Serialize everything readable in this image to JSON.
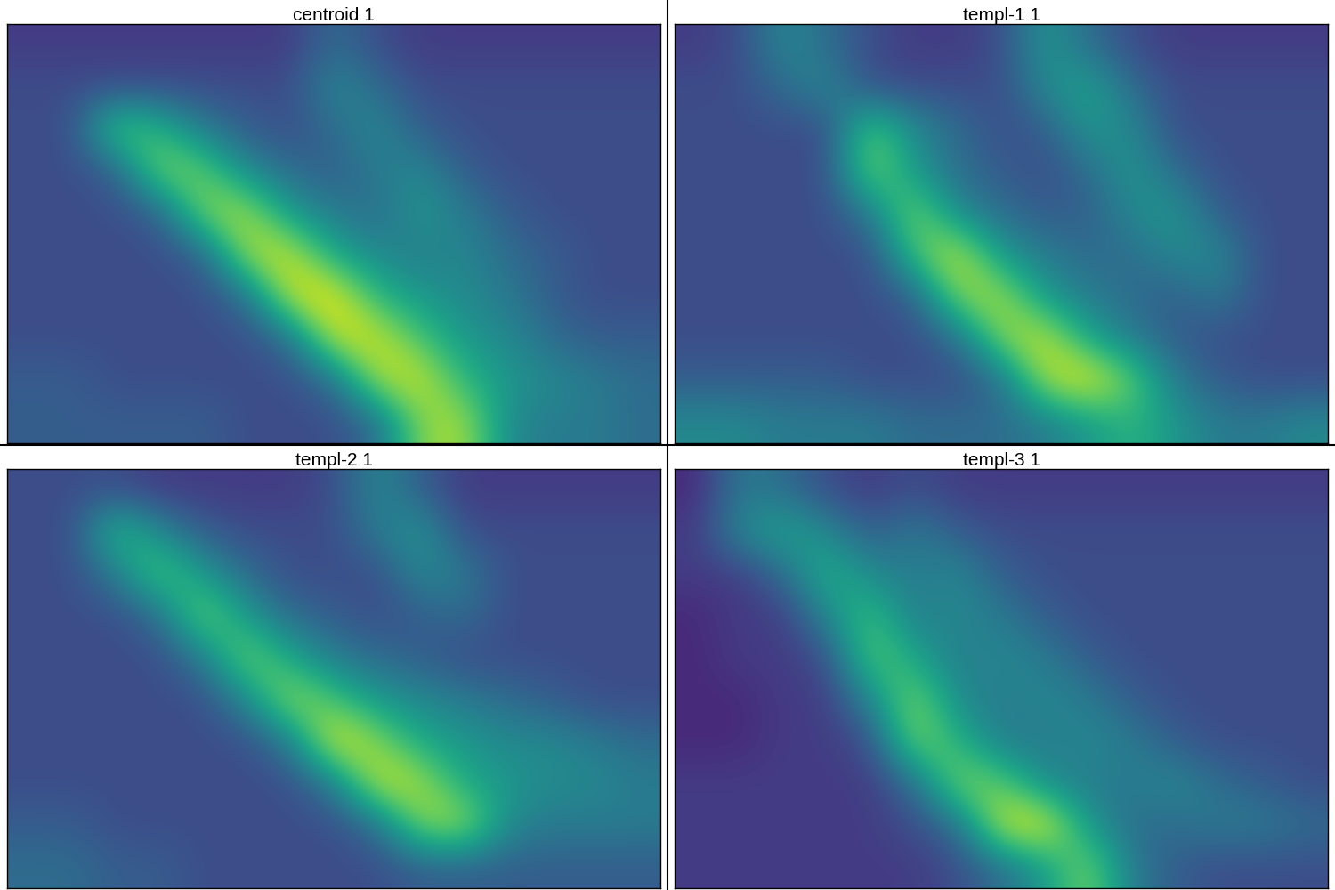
{
  "chart_data": [
    {
      "type": "heatmap",
      "title": "centroid 1",
      "tick_labels": false,
      "zlim": [
        0.15,
        1.0
      ],
      "cells": [
        [
          0.3,
          0.3,
          0.3,
          0.3,
          0.3,
          0.3,
          0.3,
          0.45,
          0.35,
          0.3,
          0.3,
          0.3,
          0.3,
          0.3,
          0.3
        ],
        [
          0.35,
          0.35,
          0.35,
          0.35,
          0.35,
          0.35,
          0.35,
          0.55,
          0.45,
          0.35,
          0.35,
          0.35,
          0.35,
          0.35,
          0.35
        ],
        [
          0.35,
          0.35,
          0.8,
          0.7,
          0.5,
          0.4,
          0.35,
          0.45,
          0.55,
          0.4,
          0.35,
          0.35,
          0.35,
          0.35,
          0.35
        ],
        [
          0.35,
          0.35,
          0.4,
          0.85,
          0.8,
          0.55,
          0.45,
          0.4,
          0.5,
          0.55,
          0.4,
          0.35,
          0.35,
          0.35,
          0.35
        ],
        [
          0.35,
          0.35,
          0.35,
          0.4,
          0.85,
          0.9,
          0.6,
          0.5,
          0.45,
          0.6,
          0.5,
          0.4,
          0.35,
          0.35,
          0.35
        ],
        [
          0.35,
          0.35,
          0.35,
          0.35,
          0.4,
          0.9,
          0.95,
          0.65,
          0.55,
          0.5,
          0.55,
          0.45,
          0.4,
          0.35,
          0.35
        ],
        [
          0.35,
          0.35,
          0.35,
          0.35,
          0.35,
          0.45,
          0.95,
          1.0,
          0.7,
          0.6,
          0.55,
          0.5,
          0.4,
          0.35,
          0.35
        ],
        [
          0.35,
          0.35,
          0.35,
          0.35,
          0.35,
          0.35,
          0.45,
          0.95,
          0.95,
          0.75,
          0.6,
          0.55,
          0.45,
          0.4,
          0.4
        ],
        [
          0.4,
          0.4,
          0.35,
          0.35,
          0.35,
          0.35,
          0.35,
          0.45,
          0.9,
          0.95,
          0.7,
          0.6,
          0.55,
          0.5,
          0.45
        ],
        [
          0.4,
          0.4,
          0.4,
          0.4,
          0.4,
          0.35,
          0.35,
          0.35,
          0.45,
          0.85,
          0.9,
          0.55,
          0.5,
          0.5,
          0.45
        ]
      ]
    },
    {
      "type": "heatmap",
      "title": "templ-1 1",
      "tick_labels": false,
      "zlim": [
        0.15,
        1.0
      ],
      "cells": [
        [
          0.3,
          0.35,
          0.55,
          0.45,
          0.35,
          0.3,
          0.3,
          0.35,
          0.6,
          0.45,
          0.35,
          0.3,
          0.3,
          0.3,
          0.3
        ],
        [
          0.35,
          0.35,
          0.45,
          0.55,
          0.35,
          0.35,
          0.35,
          0.35,
          0.55,
          0.65,
          0.45,
          0.35,
          0.35,
          0.35,
          0.35
        ],
        [
          0.35,
          0.35,
          0.35,
          0.35,
          0.8,
          0.55,
          0.45,
          0.35,
          0.4,
          0.6,
          0.55,
          0.35,
          0.35,
          0.35,
          0.35
        ],
        [
          0.35,
          0.35,
          0.35,
          0.35,
          0.85,
          0.6,
          0.45,
          0.4,
          0.35,
          0.45,
          0.6,
          0.45,
          0.35,
          0.35,
          0.35
        ],
        [
          0.35,
          0.35,
          0.35,
          0.35,
          0.5,
          0.85,
          0.55,
          0.45,
          0.4,
          0.4,
          0.55,
          0.6,
          0.4,
          0.35,
          0.35
        ],
        [
          0.35,
          0.35,
          0.35,
          0.35,
          0.35,
          0.75,
          0.95,
          0.6,
          0.5,
          0.45,
          0.45,
          0.55,
          0.55,
          0.35,
          0.35
        ],
        [
          0.35,
          0.35,
          0.35,
          0.35,
          0.35,
          0.4,
          0.85,
          0.9,
          0.6,
          0.5,
          0.45,
          0.4,
          0.5,
          0.35,
          0.35
        ],
        [
          0.35,
          0.35,
          0.35,
          0.35,
          0.35,
          0.35,
          0.45,
          0.85,
          0.95,
          0.65,
          0.5,
          0.4,
          0.35,
          0.35,
          0.35
        ],
        [
          0.4,
          0.4,
          0.4,
          0.4,
          0.35,
          0.35,
          0.35,
          0.45,
          0.9,
          1.0,
          0.8,
          0.5,
          0.4,
          0.35,
          0.35
        ],
        [
          0.55,
          0.55,
          0.5,
          0.5,
          0.5,
          0.45,
          0.45,
          0.45,
          0.5,
          0.6,
          0.7,
          0.6,
          0.5,
          0.5,
          0.55
        ]
      ]
    },
    {
      "type": "heatmap",
      "title": "templ-2 1",
      "tick_labels": false,
      "zlim": [
        0.15,
        1.0
      ],
      "cells": [
        [
          0.35,
          0.35,
          0.35,
          0.3,
          0.3,
          0.3,
          0.3,
          0.35,
          0.55,
          0.4,
          0.3,
          0.3,
          0.3,
          0.3,
          0.3
        ],
        [
          0.35,
          0.35,
          0.75,
          0.55,
          0.4,
          0.35,
          0.35,
          0.35,
          0.5,
          0.6,
          0.35,
          0.35,
          0.35,
          0.35,
          0.35
        ],
        [
          0.35,
          0.35,
          0.5,
          0.8,
          0.6,
          0.45,
          0.35,
          0.35,
          0.35,
          0.55,
          0.5,
          0.35,
          0.35,
          0.35,
          0.35
        ],
        [
          0.35,
          0.35,
          0.35,
          0.45,
          0.85,
          0.6,
          0.45,
          0.4,
          0.35,
          0.4,
          0.45,
          0.35,
          0.35,
          0.35,
          0.35
        ],
        [
          0.35,
          0.35,
          0.35,
          0.35,
          0.5,
          0.85,
          0.65,
          0.5,
          0.45,
          0.4,
          0.35,
          0.35,
          0.35,
          0.35,
          0.35
        ],
        [
          0.35,
          0.35,
          0.35,
          0.35,
          0.35,
          0.55,
          0.9,
          0.75,
          0.6,
          0.55,
          0.5,
          0.45,
          0.4,
          0.35,
          0.35
        ],
        [
          0.35,
          0.35,
          0.35,
          0.35,
          0.35,
          0.35,
          0.5,
          1.0,
          0.85,
          0.65,
          0.6,
          0.55,
          0.55,
          0.5,
          0.45
        ],
        [
          0.35,
          0.35,
          0.35,
          0.35,
          0.35,
          0.35,
          0.35,
          0.5,
          0.95,
          0.9,
          0.65,
          0.6,
          0.55,
          0.55,
          0.5
        ],
        [
          0.4,
          0.4,
          0.35,
          0.35,
          0.35,
          0.35,
          0.35,
          0.35,
          0.45,
          0.85,
          0.9,
          0.55,
          0.5,
          0.5,
          0.5
        ],
        [
          0.45,
          0.45,
          0.4,
          0.4,
          0.35,
          0.35,
          0.35,
          0.35,
          0.35,
          0.4,
          0.4,
          0.4,
          0.4,
          0.4,
          0.4
        ]
      ]
    },
    {
      "type": "heatmap",
      "title": "templ-3 1",
      "tick_labels": false,
      "zlim": [
        0.15,
        1.0
      ],
      "cells": [
        [
          0.25,
          0.5,
          0.45,
          0.35,
          0.3,
          0.35,
          0.3,
          0.3,
          0.3,
          0.3,
          0.3,
          0.3,
          0.3,
          0.3,
          0.3
        ],
        [
          0.3,
          0.55,
          0.65,
          0.55,
          0.4,
          0.5,
          0.4,
          0.35,
          0.35,
          0.35,
          0.35,
          0.35,
          0.35,
          0.35,
          0.35
        ],
        [
          0.3,
          0.3,
          0.45,
          0.7,
          0.55,
          0.5,
          0.55,
          0.4,
          0.35,
          0.35,
          0.35,
          0.35,
          0.35,
          0.35,
          0.35
        ],
        [
          0.25,
          0.3,
          0.3,
          0.55,
          0.75,
          0.5,
          0.55,
          0.5,
          0.4,
          0.35,
          0.35,
          0.35,
          0.35,
          0.35,
          0.35
        ],
        [
          0.25,
          0.3,
          0.3,
          0.35,
          0.8,
          0.65,
          0.5,
          0.55,
          0.5,
          0.4,
          0.35,
          0.35,
          0.35,
          0.35,
          0.35
        ],
        [
          0.25,
          0.25,
          0.3,
          0.3,
          0.55,
          0.85,
          0.55,
          0.5,
          0.55,
          0.5,
          0.4,
          0.35,
          0.35,
          0.35,
          0.35
        ],
        [
          0.25,
          0.25,
          0.3,
          0.3,
          0.35,
          0.85,
          0.7,
          0.5,
          0.5,
          0.55,
          0.5,
          0.4,
          0.35,
          0.35,
          0.35
        ],
        [
          0.3,
          0.3,
          0.3,
          0.3,
          0.3,
          0.45,
          0.85,
          0.8,
          0.55,
          0.5,
          0.5,
          0.55,
          0.45,
          0.4,
          0.35
        ],
        [
          0.3,
          0.3,
          0.3,
          0.3,
          0.3,
          0.35,
          0.45,
          0.95,
          1.0,
          0.6,
          0.45,
          0.45,
          0.5,
          0.5,
          0.45
        ],
        [
          0.3,
          0.3,
          0.3,
          0.3,
          0.3,
          0.3,
          0.35,
          0.45,
          0.6,
          0.85,
          0.5,
          0.4,
          0.35,
          0.35,
          0.35
        ]
      ]
    }
  ]
}
